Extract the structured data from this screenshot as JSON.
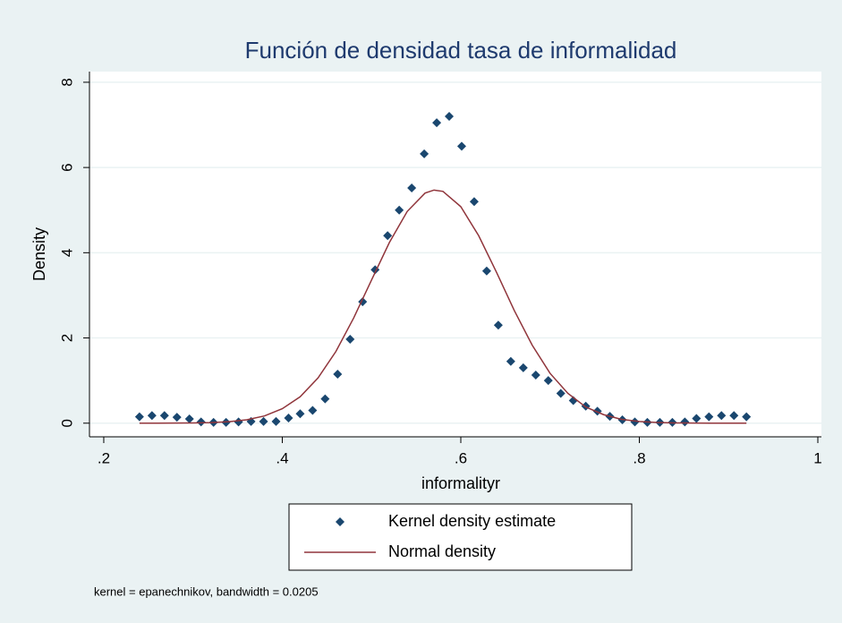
{
  "chart_data": {
    "type": "scatter",
    "title": "Función de densidad tasa de informalidad",
    "x_label": "informalityr",
    "y_label": "Density",
    "note": "kernel = epanechnikov, bandwidth = 0.0205",
    "xlim": [
      0.184,
      1.004
    ],
    "ylim": [
      -0.32,
      8.25
    ],
    "xticks": [
      {
        "value": 0.2,
        "label": ".2"
      },
      {
        "value": 0.4,
        "label": ".4"
      },
      {
        "value": 0.6,
        "label": ".6"
      },
      {
        "value": 0.8,
        "label": ".8"
      },
      1
    ],
    "yticks": [
      0,
      2,
      4,
      6,
      8
    ],
    "grid": true,
    "legend": "bottom",
    "series": [
      {
        "name": "Kernel density estimate",
        "type": "scatter",
        "color": "#1a476f",
        "x": [
          0.24,
          0.254,
          0.268,
          0.282,
          0.296,
          0.309,
          0.323,
          0.337,
          0.351,
          0.365,
          0.379,
          0.393,
          0.407,
          0.42,
          0.434,
          0.448,
          0.462,
          0.476,
          0.49,
          0.504,
          0.518,
          0.531,
          0.545,
          0.559,
          0.573,
          0.587,
          0.601,
          0.615,
          0.629,
          0.642,
          0.656,
          0.67,
          0.684,
          0.698,
          0.712,
          0.726,
          0.74,
          0.753,
          0.767,
          0.781,
          0.795,
          0.809,
          0.823,
          0.837,
          0.851,
          0.864,
          0.878,
          0.892,
          0.906,
          0.92
        ],
        "values": [
          0.15,
          0.18,
          0.18,
          0.14,
          0.1,
          0.03,
          0.02,
          0.02,
          0.03,
          0.04,
          0.04,
          0.04,
          0.12,
          0.22,
          0.3,
          0.57,
          1.15,
          1.97,
          2.85,
          3.6,
          4.4,
          5.0,
          5.52,
          6.32,
          7.05,
          7.2,
          6.5,
          5.2,
          3.57,
          2.3,
          1.45,
          1.3,
          1.13,
          1.0,
          0.7,
          0.53,
          0.4,
          0.28,
          0.16,
          0.08,
          0.03,
          0.02,
          0.02,
          0.02,
          0.03,
          0.11,
          0.15,
          0.18,
          0.18,
          0.15
        ]
      },
      {
        "name": "Normal density",
        "type": "line",
        "color": "#90353b",
        "x": [
          0.24,
          0.26,
          0.28,
          0.3,
          0.32,
          0.34,
          0.36,
          0.38,
          0.4,
          0.42,
          0.44,
          0.46,
          0.48,
          0.5,
          0.52,
          0.54,
          0.56,
          0.57,
          0.58,
          0.6,
          0.62,
          0.64,
          0.66,
          0.68,
          0.7,
          0.72,
          0.74,
          0.76,
          0.78,
          0.8,
          0.82,
          0.84,
          0.86,
          0.88,
          0.9,
          0.92
        ],
        "values": [
          0.0002,
          0.0006,
          0.0018,
          0.005,
          0.014,
          0.035,
          0.08,
          0.17,
          0.34,
          0.62,
          1.06,
          1.68,
          2.47,
          3.36,
          4.24,
          4.97,
          5.4,
          5.47,
          5.44,
          5.08,
          4.4,
          3.54,
          2.64,
          1.83,
          1.17,
          0.7,
          0.38,
          0.2,
          0.09,
          0.04,
          0.017,
          0.006,
          0.002,
          0.0007,
          0.0002,
          0
        ]
      }
    ]
  }
}
